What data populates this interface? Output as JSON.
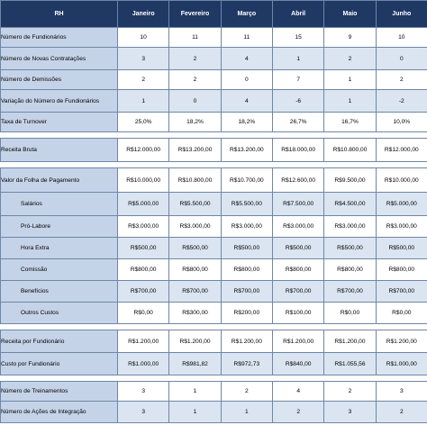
{
  "header": [
    "RH",
    "Janeiro",
    "Fevereiro",
    "Março",
    "Abril",
    "Maio",
    "Junho"
  ],
  "rows": [
    {
      "type": "row",
      "label": "Número de Fundionários",
      "values": [
        "10",
        "11",
        "11",
        "15",
        "9",
        "10"
      ],
      "sub": false,
      "shaded": false
    },
    {
      "type": "row",
      "label": "Número de Novas Contratações",
      "values": [
        "3",
        "2",
        "4",
        "1",
        "2",
        "0"
      ],
      "sub": false,
      "shaded": true
    },
    {
      "type": "row",
      "label": "Número de Demissões",
      "values": [
        "2",
        "2",
        "0",
        "7",
        "1",
        "2"
      ],
      "sub": false,
      "shaded": false
    },
    {
      "type": "row",
      "label": "Variação do Número de Fundionários",
      "values": [
        "1",
        "0",
        "4",
        "-6",
        "1",
        "-2"
      ],
      "sub": false,
      "shaded": true
    },
    {
      "type": "row",
      "label": "Taxa de Turnover",
      "values": [
        "25,0%",
        "18,2%",
        "18,2%",
        "26,7%",
        "16,7%",
        "10,0%"
      ],
      "sub": false,
      "shaded": false
    },
    {
      "type": "gap"
    },
    {
      "type": "row",
      "label": "Receita Bruta",
      "values": [
        "R$12.000,00",
        "R$13.200,00",
        "R$13.200,00",
        "R$18.000,00",
        "R$10.800,00",
        "R$12.000,00"
      ],
      "sub": false,
      "shaded": false
    },
    {
      "type": "gap"
    },
    {
      "type": "row",
      "label": "Valor da Folha de Pagamento",
      "values": [
        "R$10.000,00",
        "R$10.800,00",
        "R$10.700,00",
        "R$12.600,00",
        "R$9.500,00",
        "R$10.000,00"
      ],
      "sub": false,
      "shaded": false
    },
    {
      "type": "row",
      "label": "Salários",
      "values": [
        "R$5.000,00",
        "R$5.500,00",
        "R$5.500,00",
        "R$7.500,00",
        "R$4.500,00",
        "R$5.000,00"
      ],
      "sub": true,
      "shaded": true
    },
    {
      "type": "row",
      "label": "Pró-Labore",
      "values": [
        "R$3.000,00",
        "R$3.000,00",
        "R$3.000,00",
        "R$3.000,00",
        "R$3.000,00",
        "R$3.000,00"
      ],
      "sub": true,
      "shaded": false
    },
    {
      "type": "row",
      "label": "Hora Extra",
      "values": [
        "R$500,00",
        "R$500,00",
        "R$500,00",
        "R$500,00",
        "R$500,00",
        "R$500,00"
      ],
      "sub": true,
      "shaded": true
    },
    {
      "type": "row",
      "label": "Comissão",
      "values": [
        "R$800,00",
        "R$800,00",
        "R$800,00",
        "R$800,00",
        "R$800,00",
        "R$800,00"
      ],
      "sub": true,
      "shaded": false
    },
    {
      "type": "row",
      "label": "Benefícios",
      "values": [
        "R$700,00",
        "R$700,00",
        "R$700,00",
        "R$700,00",
        "R$700,00",
        "R$700,00"
      ],
      "sub": true,
      "shaded": true
    },
    {
      "type": "row",
      "label": "Outros Custos",
      "values": [
        "R$0,00",
        "R$300,00",
        "R$200,00",
        "R$100,00",
        "R$0,00",
        "R$0,00"
      ],
      "sub": true,
      "shaded": false
    },
    {
      "type": "gap"
    },
    {
      "type": "row",
      "label": "Receita por Fundionário",
      "values": [
        "R$1.200,00",
        "R$1.200,00",
        "R$1.200,00",
        "R$1.200,00",
        "R$1.200,00",
        "R$1.200,00"
      ],
      "sub": false,
      "shaded": false
    },
    {
      "type": "row",
      "label": "Custo por Fundionário",
      "values": [
        "R$1.000,00",
        "R$981,82",
        "R$972,73",
        "R$840,00",
        "R$1.055,56",
        "R$1.000,00"
      ],
      "sub": false,
      "shaded": true
    },
    {
      "type": "gap"
    },
    {
      "type": "row",
      "label": "Número de Treinamentos",
      "values": [
        "3",
        "1",
        "2",
        "4",
        "2",
        "3"
      ],
      "sub": false,
      "shaded": false
    },
    {
      "type": "row",
      "label": "Número de Ações de Integração",
      "values": [
        "3",
        "1",
        "1",
        "2",
        "3",
        "2"
      ],
      "sub": false,
      "shaded": true
    }
  ]
}
